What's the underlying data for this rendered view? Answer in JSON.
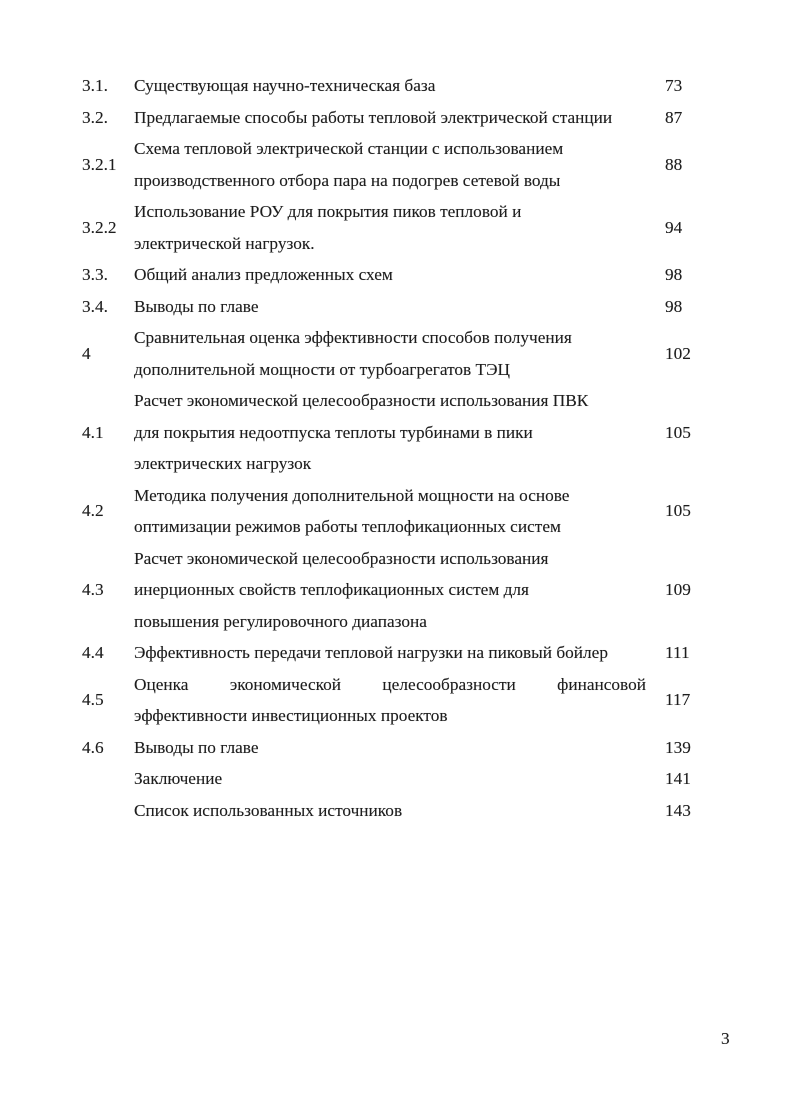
{
  "page": {
    "footer_page_number": "3"
  },
  "toc": {
    "rows": [
      {
        "num": "3.1.",
        "lines": [
          "Существующая научно-техническая база"
        ],
        "page": "73"
      },
      {
        "num": "3.2.",
        "lines": [
          "Предлагаемые способы работы тепловой электрической станции"
        ],
        "page": "87"
      },
      {
        "num": "3.2.1",
        "lines": [
          "Схема тепловой электрической станции с использованием",
          "производственного отбора пара на подогрев сетевой воды"
        ],
        "page": "88"
      },
      {
        "num": "3.2.2",
        "lines": [
          "Использование РОУ для покрытия пиков тепловой и",
          "электрической нагрузок."
        ],
        "page": "94"
      },
      {
        "num": "3.3.",
        "lines": [
          "Общий анализ предложенных схем"
        ],
        "page": "98"
      },
      {
        "num": "3.4.",
        "lines": [
          "Выводы по главе"
        ],
        "page": "98"
      },
      {
        "num": "4",
        "lines": [
          "Сравнительная оценка эффективности способов получения",
          "дополнительной мощности от турбоагрегатов ТЭЦ"
        ],
        "page": "102"
      },
      {
        "num": "4.1",
        "lines": [
          "Расчет экономической целесообразности использования ПВК",
          "для покрытия недоотпуска теплоты турбинами в пики",
          "электрических нагрузок"
        ],
        "page": "105"
      },
      {
        "num": "4.2",
        "lines": [
          "Методика получения дополнительной мощности на основе",
          "оптимизации режимов работы теплофикационных систем"
        ],
        "page": "105"
      },
      {
        "num": "4.3",
        "lines": [
          "Расчет экономической целесообразности использования",
          "инерционных свойств теплофикационных систем для",
          "повышения регулировочного диапазона"
        ],
        "page": "109"
      },
      {
        "num": "4.4",
        "lines": [
          "Эффективность передачи тепловой нагрузки на пиковый бойлер"
        ],
        "page": "111"
      },
      {
        "num": "4.5",
        "lines": [
          "Оценка экономической целесообразности финансовой",
          "эффективности инвестиционных проектов"
        ],
        "page": "117"
      },
      {
        "num": "4.6",
        "lines": [
          "Выводы по главе"
        ],
        "page": "139"
      },
      {
        "num": "",
        "lines": [
          "Заключение"
        ],
        "page": "141"
      },
      {
        "num": "",
        "lines": [
          "Список использованных источников"
        ],
        "page": "143"
      }
    ]
  }
}
